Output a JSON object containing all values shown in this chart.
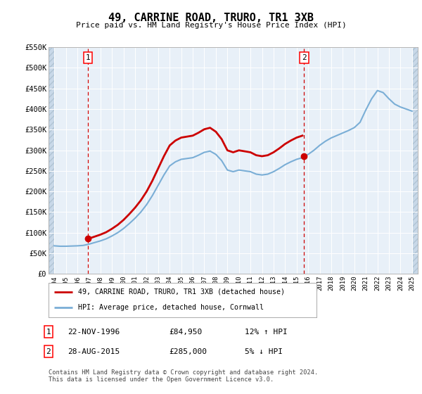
{
  "title": "49, CARRINE ROAD, TRURO, TR1 3XB",
  "subtitle": "Price paid vs. HM Land Registry's House Price Index (HPI)",
  "ylim": [
    0,
    550000
  ],
  "yticks": [
    0,
    50000,
    100000,
    150000,
    200000,
    250000,
    300000,
    350000,
    400000,
    450000,
    500000,
    550000
  ],
  "ytick_labels": [
    "£0",
    "£50K",
    "£100K",
    "£150K",
    "£200K",
    "£250K",
    "£300K",
    "£350K",
    "£400K",
    "£450K",
    "£500K",
    "£550K"
  ],
  "sale1_date": 1996.9,
  "sale1_price": 84950,
  "sale2_date": 2015.65,
  "sale2_price": 285000,
  "hpi_color": "#7aaed6",
  "price_color": "#cc0000",
  "bg_color": "#e8f0f8",
  "legend_label1": "49, CARRINE ROAD, TRURO, TR1 3XB (detached house)",
  "legend_label2": "HPI: Average price, detached house, Cornwall",
  "table_row1": [
    "1",
    "22-NOV-1996",
    "£84,950",
    "12% ↑ HPI"
  ],
  "table_row2": [
    "2",
    "28-AUG-2015",
    "£285,000",
    "5% ↓ HPI"
  ],
  "copyright_text": "Contains HM Land Registry data © Crown copyright and database right 2024.\nThis data is licensed under the Open Government Licence v3.0.",
  "xmin": 1993.5,
  "xmax": 2025.5,
  "hpi_years": [
    1994,
    1994.5,
    1995,
    1995.5,
    1996,
    1996.5,
    1997,
    1997.5,
    1998,
    1998.5,
    1999,
    1999.5,
    2000,
    2000.5,
    2001,
    2001.5,
    2002,
    2002.5,
    2003,
    2003.5,
    2004,
    2004.5,
    2005,
    2005.5,
    2006,
    2006.5,
    2007,
    2007.5,
    2008,
    2008.5,
    2009,
    2009.5,
    2010,
    2010.5,
    2011,
    2011.5,
    2012,
    2012.5,
    2013,
    2013.5,
    2014,
    2014.5,
    2015,
    2015.5,
    2016,
    2016.5,
    2017,
    2017.5,
    2018,
    2018.5,
    2019,
    2019.5,
    2020,
    2020.5,
    2021,
    2021.5,
    2022,
    2022.5,
    2023,
    2023.5,
    2024,
    2024.5,
    2025
  ],
  "hpi_values": [
    68000,
    67000,
    67000,
    67500,
    68000,
    69000,
    72000,
    76000,
    80000,
    85000,
    92000,
    100000,
    110000,
    122000,
    135000,
    150000,
    168000,
    190000,
    215000,
    240000,
    262000,
    272000,
    278000,
    280000,
    282000,
    288000,
    295000,
    298000,
    290000,
    275000,
    252000,
    248000,
    252000,
    250000,
    248000,
    242000,
    240000,
    242000,
    248000,
    256000,
    265000,
    272000,
    278000,
    282000,
    290000,
    300000,
    312000,
    322000,
    330000,
    336000,
    342000,
    348000,
    355000,
    368000,
    398000,
    425000,
    445000,
    440000,
    425000,
    412000,
    405000,
    400000,
    395000
  ]
}
